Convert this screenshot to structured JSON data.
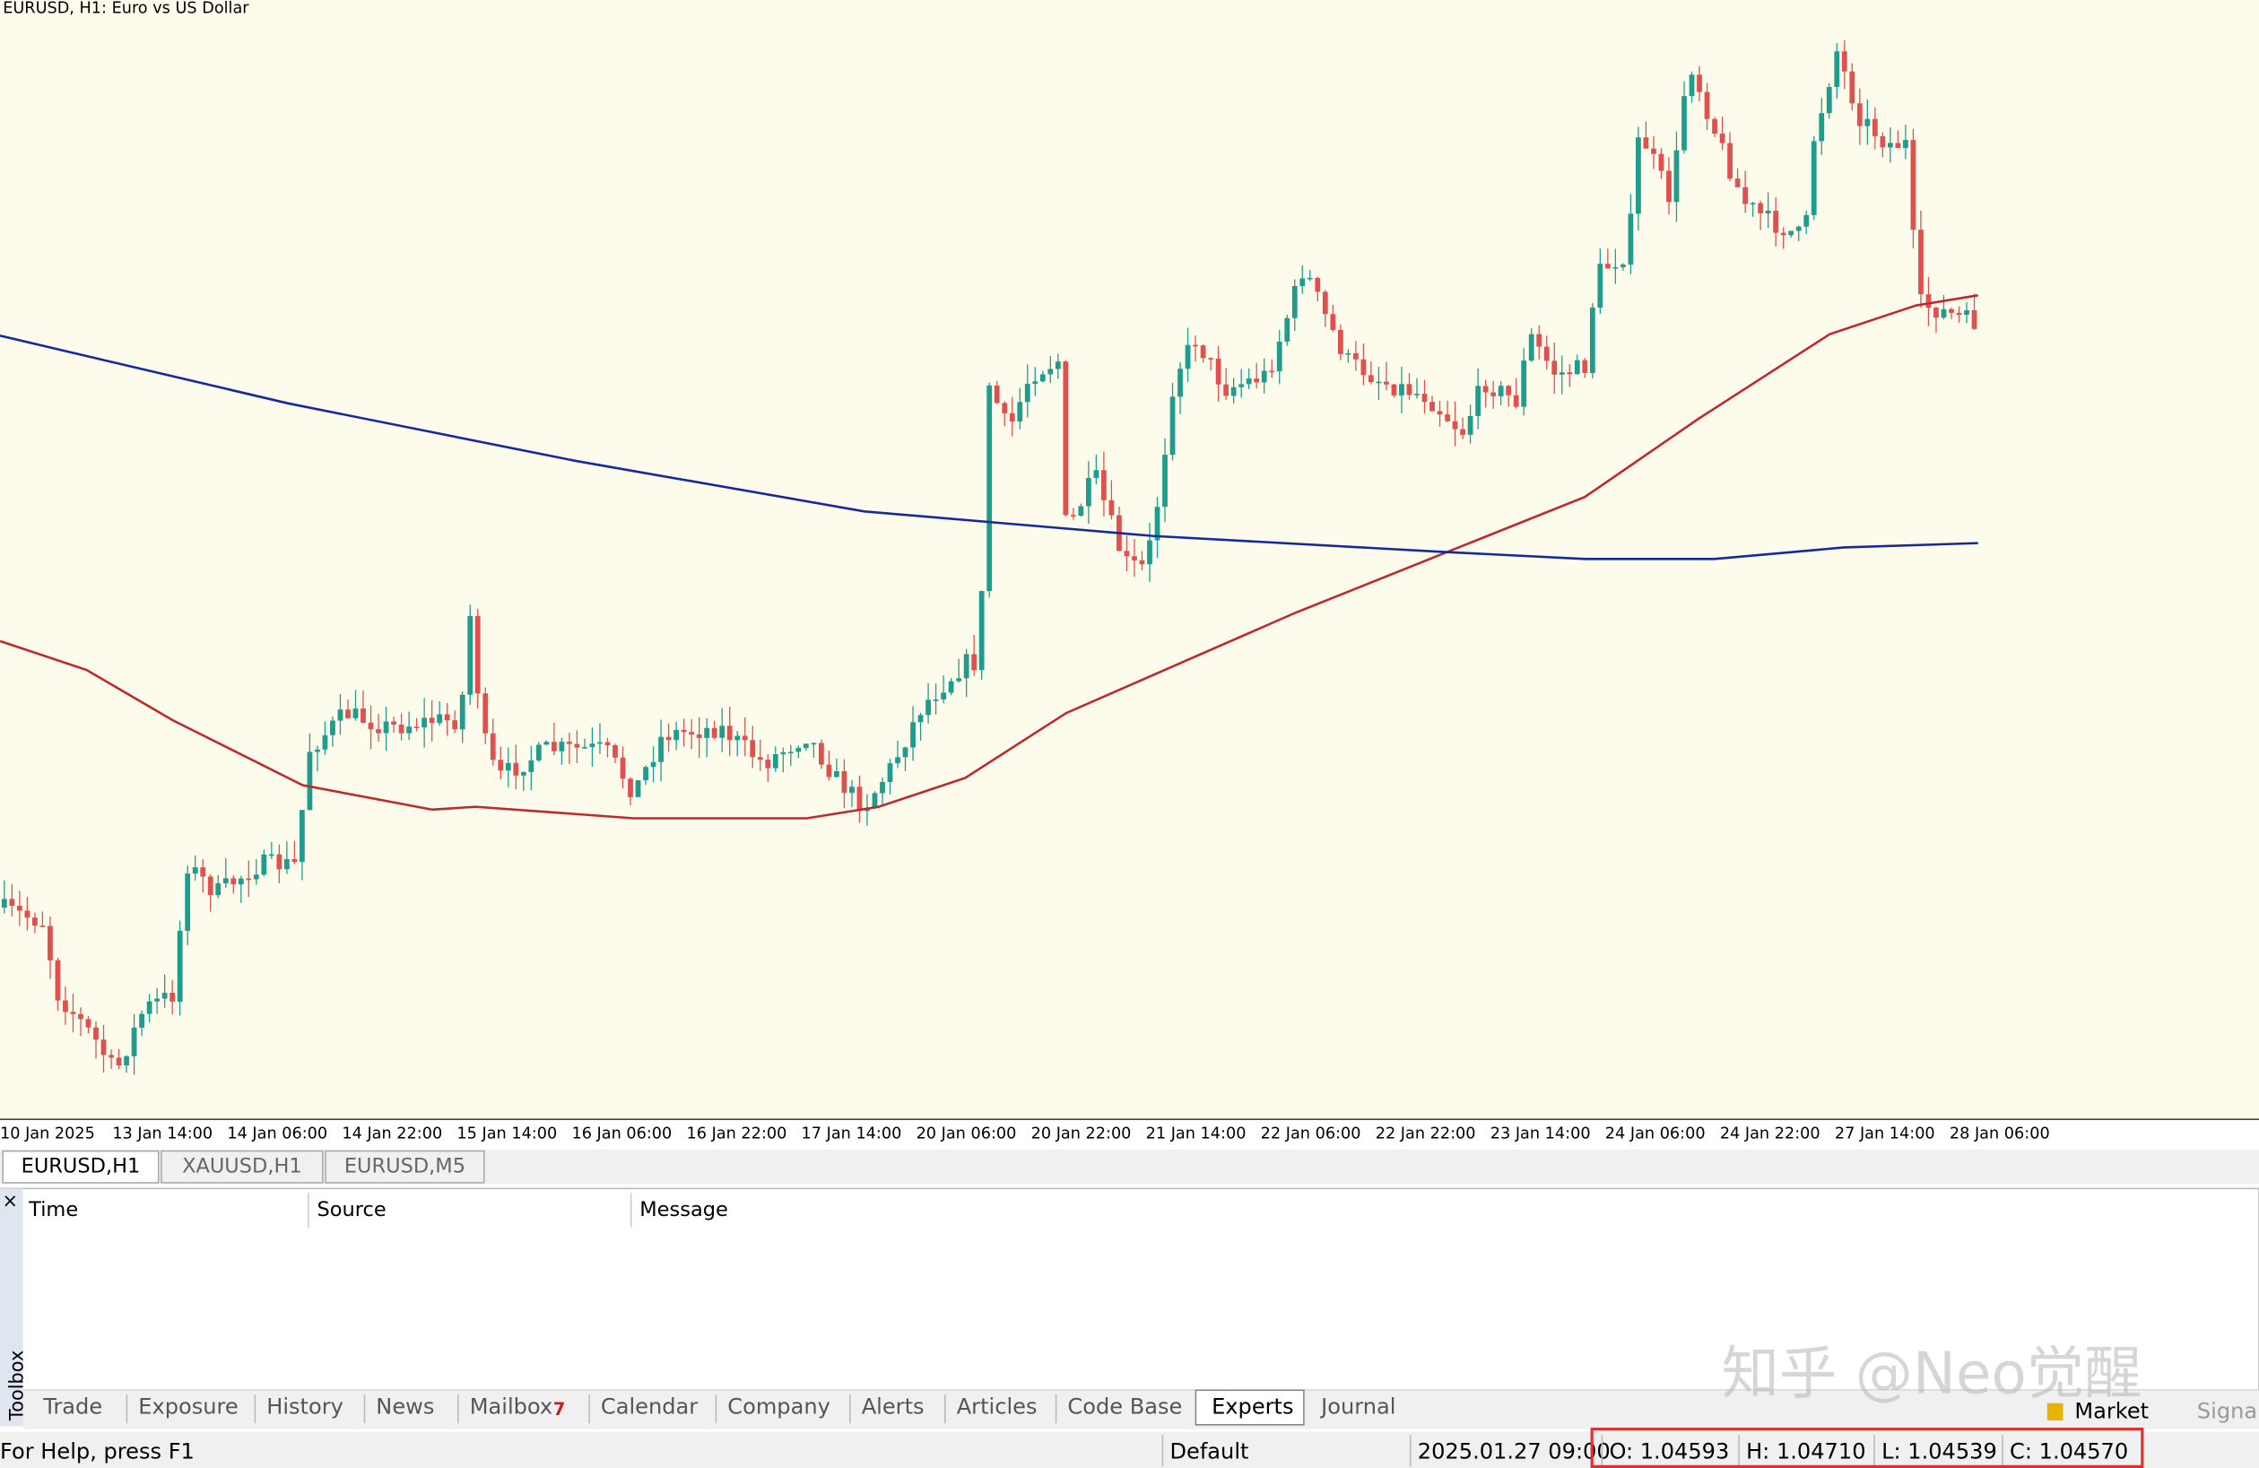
{
  "chart": {
    "title": "EURUSD, H1:  Euro vs US Dollar",
    "x_labels": [
      "10 Jan 2025",
      "13 Jan 14:00",
      "14 Jan 06:00",
      "14 Jan 22:00",
      "15 Jan 14:00",
      "16 Jan 06:00",
      "16 Jan 22:00",
      "17 Jan 14:00",
      "20 Jan 06:00",
      "20 Jan 22:00",
      "21 Jan 14:00",
      "22 Jan 06:00",
      "22 Jan 22:00",
      "23 Jan 14:00",
      "24 Jan 06:00",
      "24 Jan 22:00",
      "27 Jan 14:00",
      "28 Jan 06:00"
    ]
  },
  "chart_tabs": [
    "EURUSD,H1",
    "XAUUSD,H1",
    "EURUSD,M5"
  ],
  "toolbox": {
    "label": "Toolbox",
    "close": "×",
    "columns": [
      "Time",
      "Source",
      "Message"
    ],
    "tabs": [
      "Trade",
      "Exposure",
      "History",
      "News",
      "Mailbox",
      "Calendar",
      "Company",
      "Alerts",
      "Articles",
      "Code Base",
      "Experts",
      "Journal"
    ],
    "mailbox_badge": "7",
    "right_tabs": [
      "Market",
      "Signal"
    ]
  },
  "status": {
    "help": "For Help, press F1",
    "profile": "Default",
    "time": "2025.01.27 09:00",
    "open": "O: 1.04593",
    "high": "H: 1.04710",
    "low": "L: 1.04539",
    "close": "C: 1.04570"
  },
  "watermark": "知乎 @Neo觉醒"
}
